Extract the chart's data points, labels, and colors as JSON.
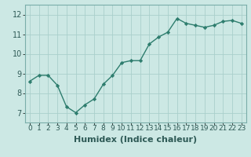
{
  "x": [
    0,
    1,
    2,
    3,
    4,
    5,
    6,
    7,
    8,
    9,
    10,
    11,
    12,
    13,
    14,
    15,
    16,
    17,
    18,
    19,
    20,
    21,
    22,
    23
  ],
  "y": [
    8.6,
    8.9,
    8.9,
    8.4,
    7.3,
    7.0,
    7.4,
    7.7,
    8.45,
    8.9,
    9.55,
    9.65,
    9.65,
    10.5,
    10.85,
    11.1,
    11.8,
    11.55,
    11.45,
    11.35,
    11.45,
    11.65,
    11.7,
    11.55
  ],
  "line_color": "#2e7d6e",
  "marker": "D",
  "marker_size": 2.2,
  "bg_color": "#cce8e4",
  "grid_color": "#aacfcb",
  "xlabel": "Humidex (Indice chaleur)",
  "xlabel_fontsize": 8,
  "ylabel_ticks": [
    7,
    8,
    9,
    10,
    11,
    12
  ],
  "xlim": [
    -0.5,
    23.5
  ],
  "ylim": [
    6.5,
    12.5
  ],
  "xtick_labels": [
    "0",
    "1",
    "2",
    "3",
    "4",
    "5",
    "6",
    "7",
    "8",
    "9",
    "10",
    "11",
    "12",
    "13",
    "14",
    "15",
    "16",
    "17",
    "18",
    "19",
    "20",
    "21",
    "22",
    "23"
  ],
  "tick_fontsize": 6.5,
  "line_width": 1.0
}
